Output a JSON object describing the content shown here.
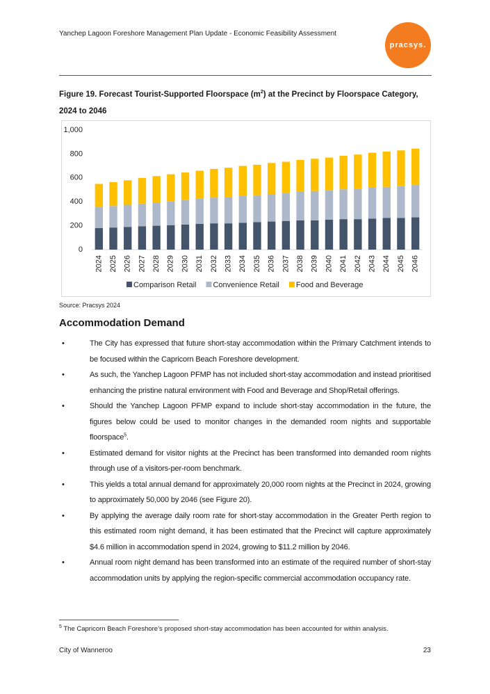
{
  "header": {
    "title": "Yanchep Lagoon Foreshore Management Plan Update - Economic Feasibility Assessment",
    "logo": "pracsys."
  },
  "figure": {
    "caption_before": "Figure 19. Forecast Tourist-Supported Floorspace (m",
    "caption_sup": "2",
    "caption_after": ") at the Precinct by Floorspace Category, 2024 to 2046",
    "source": "Source: Pracsys 2024"
  },
  "chart_data": {
    "type": "stacked-bar",
    "categories": [
      "2024",
      "2025",
      "2026",
      "2027",
      "2028",
      "2029",
      "2030",
      "2031",
      "2032",
      "2033",
      "2034",
      "2035",
      "2036",
      "2037",
      "2038",
      "2039",
      "2040",
      "2041",
      "2042",
      "2043",
      "2044",
      "2045",
      "2046"
    ],
    "series": [
      {
        "name": "Comparison Retail",
        "color": "#44546a",
        "values": [
          180,
          185,
          190,
          195,
          200,
          205,
          210,
          215,
          220,
          220,
          225,
          230,
          235,
          240,
          245,
          245,
          250,
          255,
          255,
          260,
          265,
          265,
          270
        ]
      },
      {
        "name": "Convenience Retail",
        "color": "#adb9ca",
        "values": [
          175,
          180,
          185,
          190,
          195,
          200,
          205,
          210,
          215,
          220,
          225,
          225,
          230,
          235,
          240,
          245,
          245,
          250,
          255,
          260,
          260,
          265,
          270
        ]
      },
      {
        "name": "Food and Beverage",
        "color": "#ffc000",
        "values": [
          195,
          200,
          205,
          215,
          220,
          225,
          230,
          235,
          240,
          245,
          250,
          255,
          260,
          260,
          265,
          270,
          275,
          280,
          285,
          290,
          295,
          300,
          305
        ]
      }
    ],
    "ylim": [
      0,
      1000
    ],
    "yticks": [
      0,
      200,
      400,
      600,
      800,
      {
        "value": 1000,
        "label": "1,000"
      }
    ],
    "grid": false,
    "legend": "bottom"
  },
  "section": {
    "heading": "Accommodation Demand",
    "bullets": [
      {
        "text": "The City has expressed that future short-stay accommodation within the Primary Catchment intends to be focused within the Capricorn Beach Foreshore development."
      },
      {
        "text": "As such, the Yanchep Lagoon PFMP has not included short-stay accommodation and instead prioritised enhancing the pristine natural environment with Food and Beverage and Shop/Retail offerings."
      },
      {
        "text": "Should the Yanchep Lagoon PFMP expand to include short-stay accommodation in the future, the figures below could be used to monitor changes in the demanded room nights and supportable floorspace",
        "ref": "5",
        "after": "."
      },
      {
        "text": "Estimated demand for visitor nights at the Precinct has been transformed into demanded room nights through use of a visitors-per-room benchmark."
      },
      {
        "text": "This yields a total annual demand for approximately 20,000 room nights at the Precinct in 2024, growing to approximately 50,000 by 2046 (see Figure 20)."
      },
      {
        "text": "By applying the average daily room rate for short-stay accommodation in the Greater Perth region to this estimated room night demand, it has been estimated that the Precinct will capture approximately $4.6 million in accommodation spend in 2024, growing to $11.2 million by 2046."
      },
      {
        "text": "Annual room night demand has been transformed into an estimate of the required number of short-stay accommodation units by applying the region-specific commercial accommodation occupancy rate."
      }
    ]
  },
  "footnote": {
    "number": "5",
    "text": "The Capricorn Beach Foreshore’s proposed short-stay accommodation has been accounted for within analysis."
  },
  "footer": {
    "left": "City of Wanneroo",
    "page": "23"
  }
}
